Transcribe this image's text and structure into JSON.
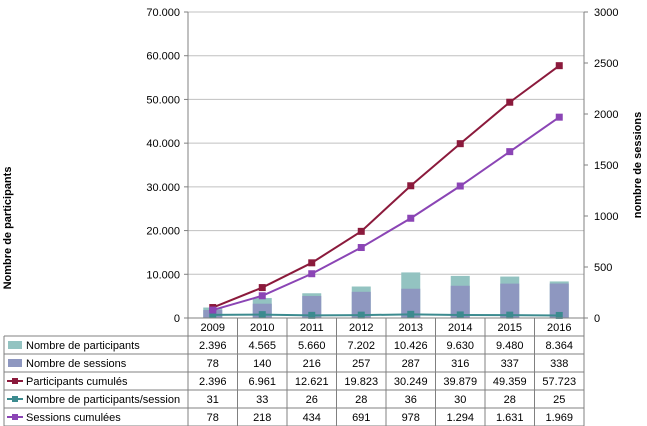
{
  "colors": {
    "participants_bar": "#93C3C1",
    "sessions_bar": "#8E97C0",
    "participants_cumules": "#8B1A3C",
    "participants_per_session": "#3C8B8F",
    "sessions_cumulees": "#8B45B5",
    "grid": "#C0C0C0"
  },
  "chart_data": {
    "type": "bar",
    "categories": [
      "2009",
      "2010",
      "2011",
      "2012",
      "2013",
      "2014",
      "2015",
      "2016"
    ],
    "y_left": {
      "label": "Nombre de participants",
      "range": [
        0,
        70000
      ],
      "ticks": [
        0,
        10000,
        20000,
        30000,
        40000,
        50000,
        60000,
        70000
      ],
      "tick_labels": [
        "0",
        "10.000",
        "20.000",
        "30.000",
        "40.000",
        "50.000",
        "60.000",
        "70.000"
      ]
    },
    "y_right": {
      "label": "nombre de sessions",
      "range": [
        0,
        3000
      ],
      "ticks": [
        0,
        500,
        1000,
        1500,
        2000,
        2500,
        3000
      ],
      "tick_labels": [
        "0",
        "500",
        "1000",
        "1500",
        "2000",
        "2500",
        "3000"
      ]
    },
    "grid": true,
    "legend": "data table",
    "series": [
      {
        "name": "Nombre de participants",
        "type": "bar",
        "axis": "left",
        "values": [
          2396,
          4565,
          5660,
          7202,
          10426,
          9630,
          9480,
          8364
        ],
        "labels": [
          "2.396",
          "4.565",
          "5.660",
          "7.202",
          "10.426",
          "9.630",
          "9.480",
          "8.364"
        ]
      },
      {
        "name": "Nombre de sessions",
        "type": "bar",
        "axis": "right",
        "values": [
          78,
          140,
          216,
          257,
          287,
          316,
          337,
          338
        ],
        "labels": [
          "78",
          "140",
          "216",
          "257",
          "287",
          "316",
          "337",
          "338"
        ]
      },
      {
        "name": "Participants cumulés",
        "type": "line",
        "axis": "left",
        "values": [
          2396,
          6961,
          12621,
          19823,
          30249,
          39879,
          49359,
          57723
        ],
        "labels": [
          "2.396",
          "6.961",
          "12.621",
          "19.823",
          "30.249",
          "39.879",
          "49.359",
          "57.723"
        ]
      },
      {
        "name": "Nombre de participants/session",
        "type": "line",
        "axis": "right",
        "values": [
          31,
          33,
          26,
          28,
          36,
          30,
          28,
          25
        ],
        "labels": [
          "31",
          "33",
          "26",
          "28",
          "36",
          "30",
          "28",
          "25"
        ]
      },
      {
        "name": "Sessions cumulées",
        "type": "line",
        "axis": "right",
        "values": [
          78,
          218,
          434,
          691,
          978,
          1294,
          1631,
          1969
        ],
        "labels": [
          "78",
          "218",
          "434",
          "691",
          "978",
          "1.294",
          "1.631",
          "1.969"
        ]
      }
    ]
  }
}
